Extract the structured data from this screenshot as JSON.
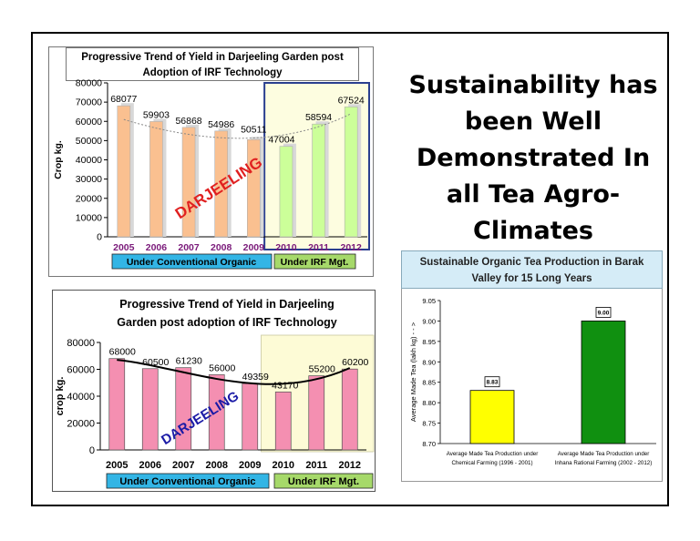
{
  "headline": "Sustainability has been Well Demonstrated In all Tea Agro-Climates",
  "chart_data": [
    {
      "type": "bar",
      "title": "Progressive Trend of Yield in Darjeeling Garden post Adoption of IRF Technology",
      "ylabel": "Crop kg.",
      "ylim": [
        0,
        80000
      ],
      "yticks": [
        "0",
        "10000",
        "20000",
        "30000",
        "40000",
        "50000",
        "60000",
        "70000",
        "80000"
      ],
      "categories": [
        "2005",
        "2006",
        "2007",
        "2008",
        "2009",
        "2010",
        "2011",
        "2012"
      ],
      "values": [
        68077,
        59903,
        56868,
        54986,
        50511,
        47004,
        58594,
        67524
      ],
      "value_labels": [
        "68077",
        "59903",
        "56868",
        "54986",
        "50511",
        "47004",
        "58594",
        "67524"
      ],
      "annotation": "DARJEELING",
      "group_labels": [
        "Under Conventional Organic",
        "Under IRF Mgt."
      ],
      "colors": {
        "conventional": "#fac090",
        "irf": "#ccff99",
        "irf_region": "#fdfde0",
        "annotation": "#e02020"
      }
    },
    {
      "type": "bar",
      "title": "Progressive Trend of Yield in Darjeeling Garden post adoption of IRF Technology",
      "ylabel": "crop kg.",
      "ylim": [
        0,
        80000
      ],
      "yticks": [
        "0",
        "20000",
        "40000",
        "60000",
        "80000"
      ],
      "categories": [
        "2005",
        "2006",
        "2007",
        "2008",
        "2009",
        "2010",
        "2011",
        "2012"
      ],
      "values": [
        68000,
        60500,
        61230,
        56000,
        49359,
        43170,
        55200,
        60200
      ],
      "value_labels": [
        "68000",
        "60500",
        "61230",
        "56000",
        "49359",
        "43170",
        "55200",
        "60200"
      ],
      "annotation": "DARJEELING",
      "group_labels": [
        "Under Conventional Organic",
        "Under IRF Mgt."
      ],
      "colors": {
        "bar": "#f48fb1",
        "irf_region": "#fdfbd6",
        "annotation": "#1a1aa6"
      }
    },
    {
      "type": "bar",
      "title": "Sustainable Organic Tea Production in Barak Valley for 15 Long Years",
      "ylabel": "Average Made Tea (lakh kg) - - >",
      "ylim": [
        8.7,
        9.05
      ],
      "yticks": [
        "8.70",
        "8.75",
        "8.80",
        "8.85",
        "8.90",
        "8.95",
        "9.00",
        "9.05"
      ],
      "categories": [
        "Average Made Tea Production under Chemical Farming (1996 - 2001)",
        "Average Made Tea Production under Inhana Rational Farming (2002 - 2012)"
      ],
      "values": [
        8.83,
        9.0
      ],
      "value_labels": [
        "8.83",
        "9.00"
      ],
      "colors": {
        "bars": [
          "#ffff00",
          "#109010"
        ],
        "title_bg": "#d5ecf7"
      }
    }
  ]
}
